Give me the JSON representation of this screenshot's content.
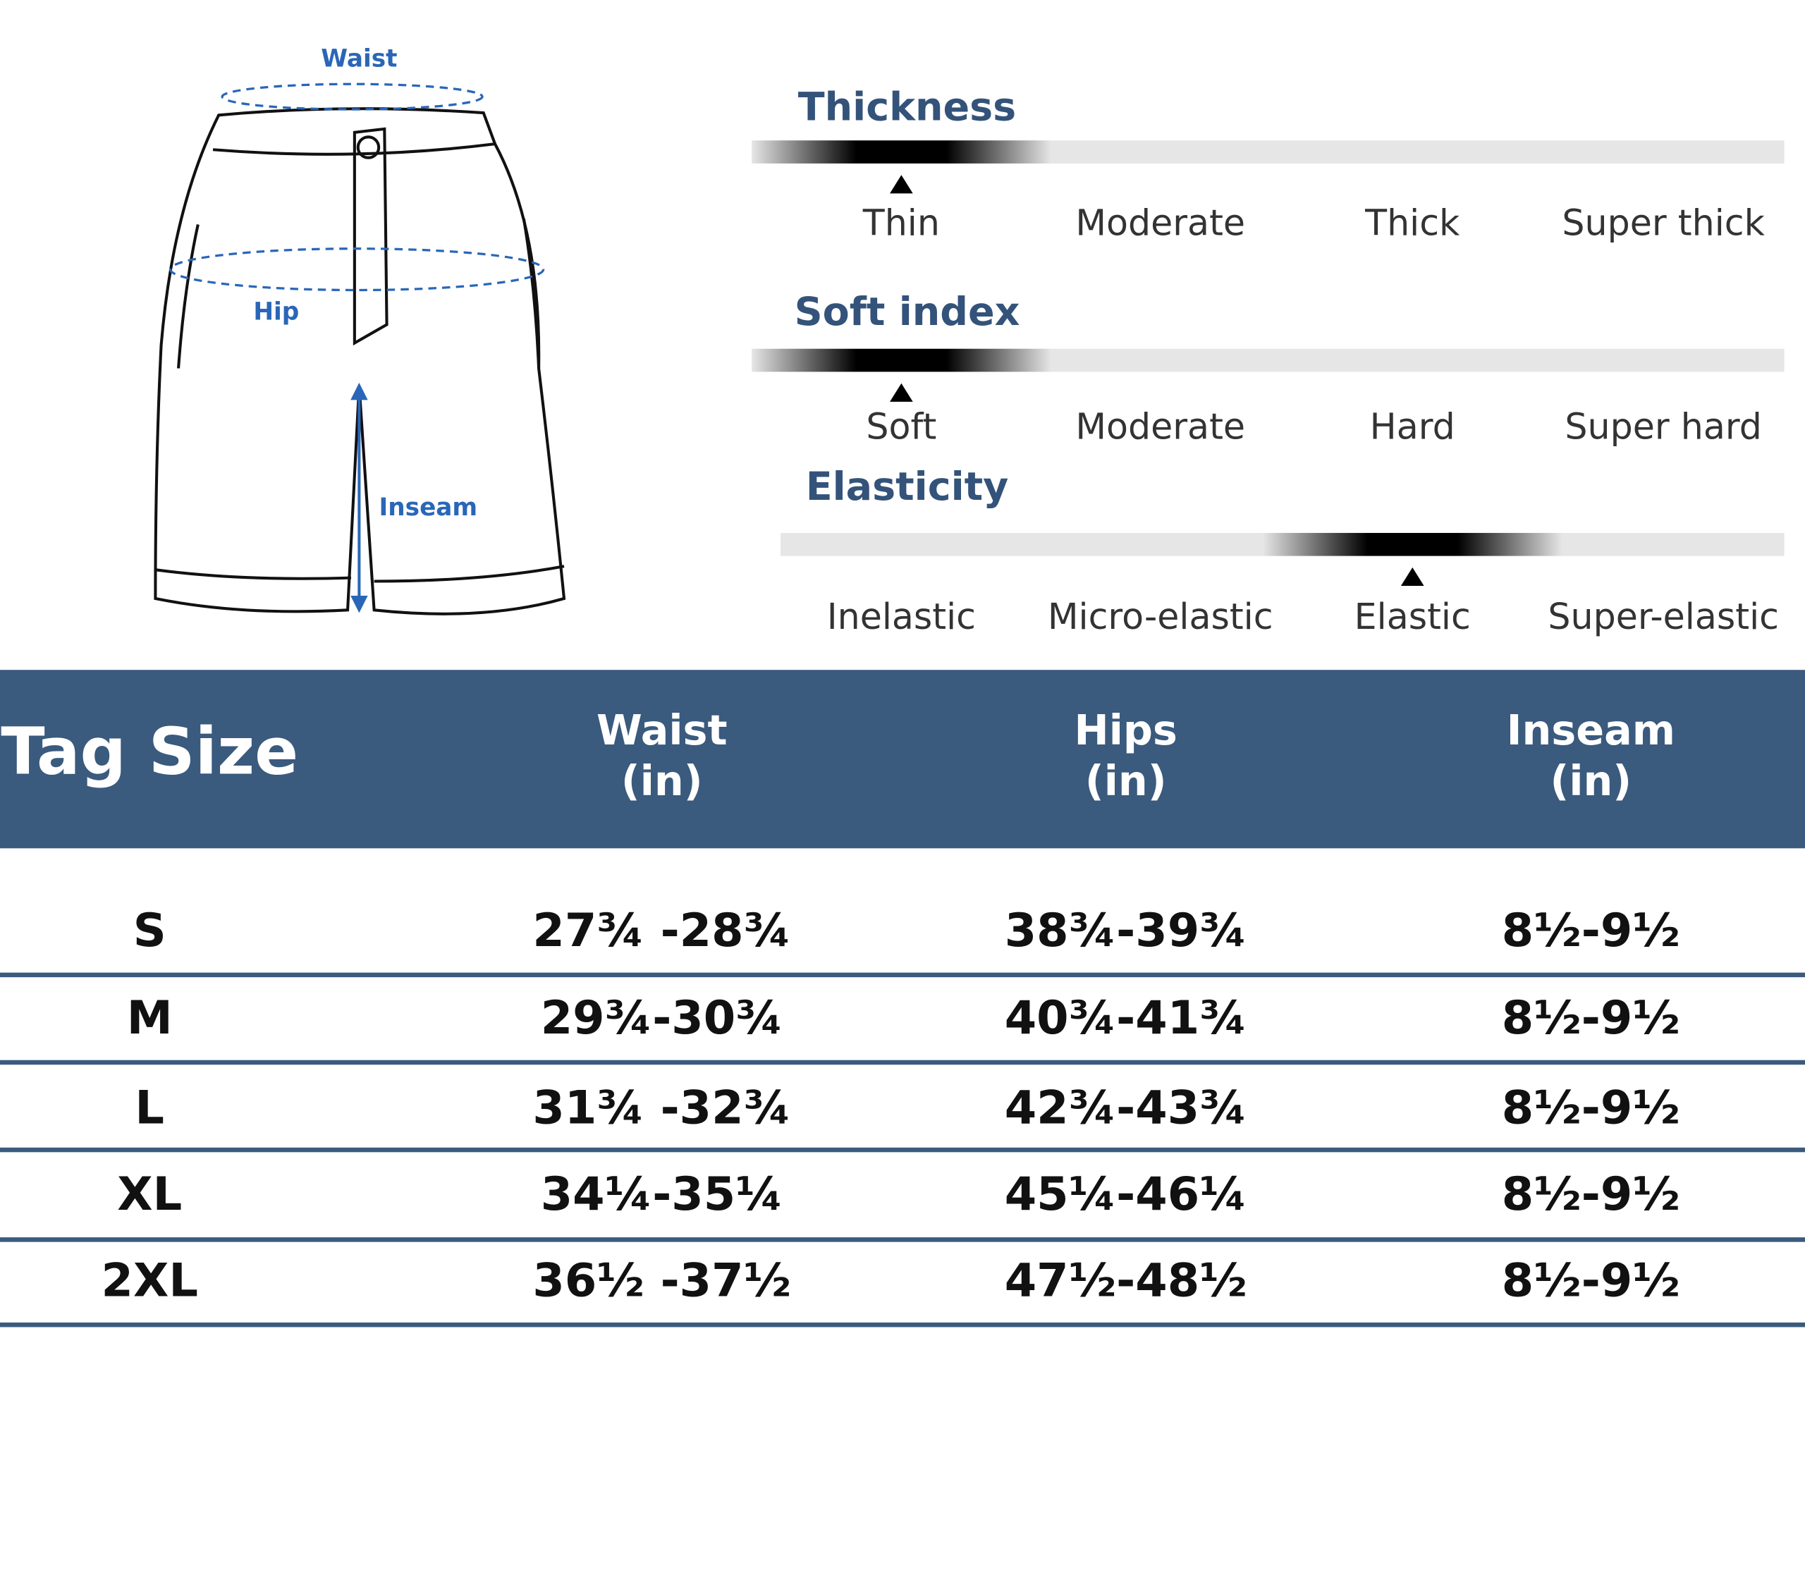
{
  "diagram": {
    "labels": [
      "Waist",
      "Hip",
      "Inseam"
    ]
  },
  "scales": [
    {
      "title": "Thickness",
      "options": [
        "Thin",
        "Moderate",
        "Thick",
        "Super thick"
      ],
      "selected": 0
    },
    {
      "title": "Soft index",
      "options": [
        "Soft",
        "Moderate",
        "Hard",
        "Super hard"
      ],
      "selected": 0
    },
    {
      "title": "Elasticity",
      "options": [
        "Inelastic",
        "Micro-elastic",
        "Elastic",
        "Super-elastic"
      ],
      "selected": 2
    }
  ],
  "table": {
    "header": [
      [
        "Tag Size"
      ],
      [
        "Waist",
        "(in)"
      ],
      [
        "Hips",
        "(in)"
      ],
      [
        "Inseam",
        "(in)"
      ]
    ],
    "rows": [
      [
        "S",
        "27¾ -28¾",
        "38¾-39¾",
        "8½-9½"
      ],
      [
        "M",
        "29¾-30¾",
        "40¾-41¾",
        "8½-9½"
      ],
      [
        "L",
        "31¾ -32¾",
        "42¾-43¾",
        "8½-9½"
      ],
      [
        "XL",
        "34¼-35¼",
        "45¼-46¼",
        "8½-9½"
      ],
      [
        "2XL",
        "36½ -37½",
        "47½-48½",
        "8½-9½"
      ]
    ]
  }
}
